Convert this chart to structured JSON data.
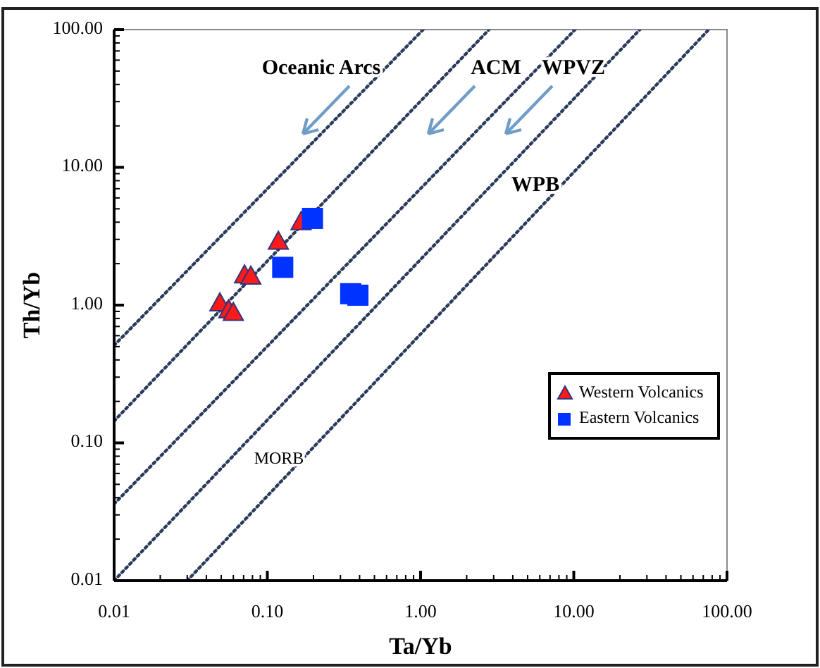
{
  "chart_data": {
    "type": "scatter",
    "xlabel": "Ta/Yb",
    "ylabel": "Th/Yb",
    "log": "xy",
    "xlim": [
      0.01,
      100
    ],
    "ylim": [
      0.01,
      100
    ],
    "xticks": [
      0.01,
      {
        "value": 0.1,
        "label": "0.10"
      },
      {
        "value": 1,
        "label": "1.00"
      },
      {
        "value": 10,
        "label": "10.00"
      },
      {
        "value": 100,
        "label": "100.00"
      }
    ],
    "yticks": [
      0.01,
      {
        "value": 0.1,
        "label": "0.10"
      },
      {
        "value": 1,
        "label": "1.00"
      },
      {
        "value": 10,
        "label": "10.00"
      },
      {
        "value": 100,
        "label": "100.00"
      }
    ],
    "grid": false,
    "legend": "right",
    "series": [
      {
        "type": "line",
        "color": "#2b3b5c",
        "line_style": "dotted",
        "marker": "none",
        "x": [
          0.01,
          1.04
        ],
        "values": [
          0.51,
          100
        ]
      },
      {
        "type": "line",
        "color": "#2b3b5c",
        "line_style": "dotted",
        "marker": "none",
        "x": [
          0.01,
          2.8
        ],
        "values": [
          0.144,
          100
        ]
      },
      {
        "type": "line",
        "color": "#2b3b5c",
        "line_style": "dotted",
        "marker": "none",
        "x": [
          0.01,
          10.2
        ],
        "values": [
          0.036,
          100
        ]
      },
      {
        "type": "line",
        "color": "#2b3b5c",
        "line_style": "dotted",
        "marker": "none",
        "x": [
          0.01,
          27
        ],
        "values": [
          0.01,
          100
        ]
      },
      {
        "type": "line",
        "color": "#2b3b5c",
        "line_style": "dotted",
        "marker": "none",
        "x": [
          0.03,
          76
        ],
        "values": [
          0.01,
          100
        ]
      },
      {
        "name": "Western Volcanics",
        "marker": "triangle",
        "color": "#ff1a1a",
        "x": [
          0.049,
          0.056,
          0.06,
          0.071,
          0.078,
          0.118,
          0.166
        ],
        "values": [
          1.02,
          0.91,
          0.87,
          1.63,
          1.6,
          2.86,
          3.97
        ]
      },
      {
        "name": "Eastern Volcanics",
        "marker": "square",
        "color": "#0033ff",
        "x": [
          0.197,
          0.126,
          0.35,
          0.39
        ],
        "values": [
          4.26,
          1.88,
          1.21,
          1.18
        ]
      }
    ],
    "annotations": [
      "Oceanic Arcs",
      "ACM",
      "WPVZ",
      "WPB",
      "MORB"
    ]
  }
}
